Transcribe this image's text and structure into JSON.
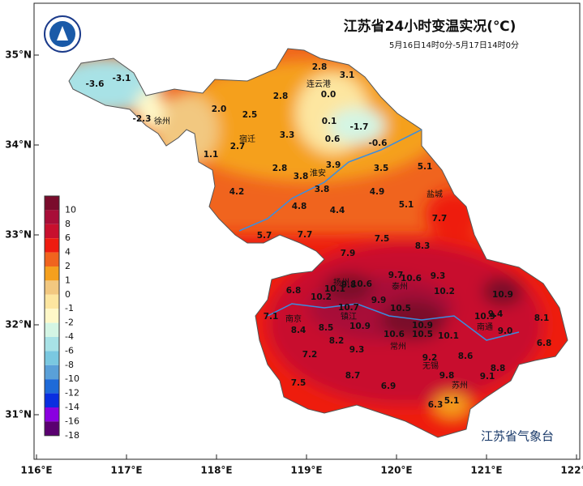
{
  "header": {
    "title": "江苏省24小时变温实况(℃)",
    "subtitle": "5月16日14时0分-5月17日14时0分",
    "footer": "江苏省气象台"
  },
  "map": {
    "lon_ticks": [
      {
        "value": 116,
        "label": "116°E"
      },
      {
        "value": 117,
        "label": "117°E"
      },
      {
        "value": 118,
        "label": "118°E"
      },
      {
        "value": 119,
        "label": "119°E"
      },
      {
        "value": 120,
        "label": "120°E"
      },
      {
        "value": 121,
        "label": "121°E"
      },
      {
        "value": 122,
        "label": "122°E"
      }
    ],
    "lat_ticks": [
      {
        "value": 31,
        "label": "31°N"
      },
      {
        "value": 32,
        "label": "32°N"
      },
      {
        "value": 33,
        "label": "33°N"
      },
      {
        "value": 34,
        "label": "34°N"
      },
      {
        "value": 35,
        "label": "35°N"
      }
    ],
    "legend": {
      "levels": [
        10,
        8,
        6,
        4,
        2,
        1,
        0,
        -1,
        -2,
        -4,
        -6,
        -8,
        -10,
        -12,
        -14,
        -16,
        -18
      ],
      "colors": [
        "#7a0c2c",
        "#a80e38",
        "#c8102e",
        "#ee1c10",
        "#f0641e",
        "#f5a01e",
        "#f2c880",
        "#fde6a0",
        "#fff8c8",
        "#d4f5e4",
        "#a8e2e6",
        "#7ac8e0",
        "#5aa0d8",
        "#1e6ad8",
        "#0a2ee0",
        "#8a00e0",
        "#5a0070"
      ]
    },
    "stations": [
      "-3.6",
      "-3.1",
      "-2.3",
      "2.0",
      "2.5",
      "2.8",
      "2.8",
      "3.1",
      "0.0",
      "0.1",
      "-1.7",
      "0.6",
      "-0.6",
      "3.3",
      "2.7",
      "1.1",
      "2.8",
      "3.8",
      "3.9",
      "3.5",
      "5.1",
      "4.2",
      "3.8",
      "4.9",
      "4.8",
      "4.4",
      "5.1",
      "7.7",
      "5.7",
      "7.7",
      "7.5",
      "8.3",
      "7.9",
      "9.7",
      "10.6",
      "9.3",
      "6.8",
      "10.1",
      "9.8",
      "10.6",
      "10.2",
      "10.9",
      "10.2",
      "9.9",
      "10.7",
      "10.5",
      "7.1",
      "10.9",
      "9.4",
      "8.1",
      "8.4",
      "8.5",
      "10.9",
      "10.9",
      "10.6",
      "10.5",
      "10.1",
      "9.0",
      "6.8",
      "8.2",
      "7.2",
      "9.3",
      "8.6",
      "9.2",
      "8.8",
      "9.1",
      "8.7",
      "9.8",
      "7.5",
      "6.9",
      "5.1",
      "6.3"
    ],
    "cities": [
      "连云港",
      "徐州",
      "宿迁",
      "淮安",
      "盐城",
      "泰州",
      "扬州",
      "镇江",
      "南京",
      "常州",
      "无锡",
      "苏州",
      "南通"
    ]
  }
}
